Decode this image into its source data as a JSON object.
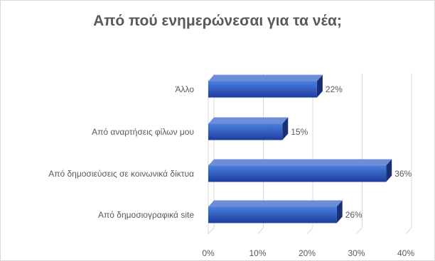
{
  "chart_data": {
    "type": "bar",
    "orientation": "horizontal",
    "title": "Από πού ενημερώνεσαι για τα νέα;",
    "categories": [
      "Από δημοσιογραφικά site",
      "Από δημοσιεύσεις σε κοινωνικά δίκτυα",
      "Από αναρτήσεις φίλων μου",
      "Άλλο"
    ],
    "values": [
      26,
      36,
      15,
      22
    ],
    "data_labels": [
      "26%",
      "36%",
      "15%",
      "22%"
    ],
    "xlim": [
      0,
      40
    ],
    "x_ticks": [
      0,
      10,
      20,
      30,
      40
    ],
    "x_tick_labels": [
      "0%",
      "10%",
      "20%",
      "30%",
      "40%"
    ],
    "xlabel": "",
    "ylabel": "",
    "gridlines": true,
    "legend": "none",
    "style": "3d",
    "colors": {
      "bar_front_top": "#4a7fe0",
      "bar_front_bottom": "#1c3d9c",
      "bar_top_face": "#6d8ed6",
      "bar_side_face": "#1a2f74",
      "grid": "#d9d9d9",
      "text": "#595959",
      "title": "#595959"
    }
  }
}
